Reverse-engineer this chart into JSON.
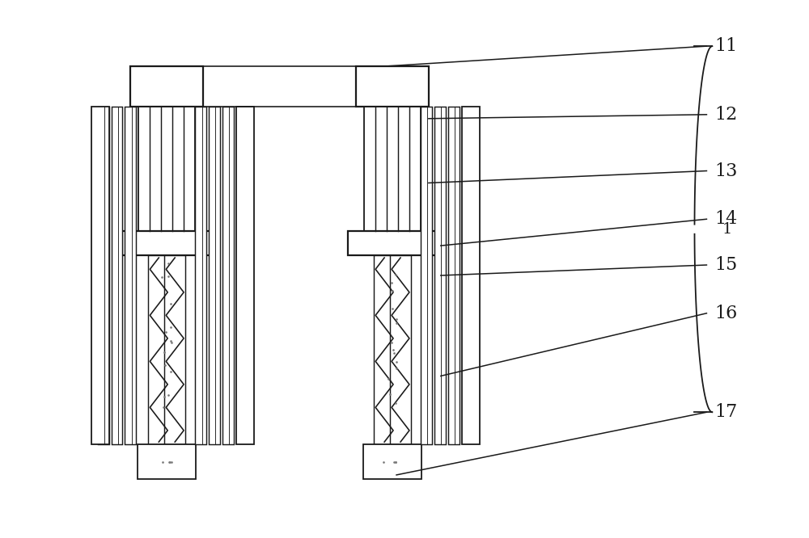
{
  "bg_color": "#ffffff",
  "line_color": "#1a1a1a",
  "lw": 1.3,
  "fig_width": 10.0,
  "fig_height": 6.66,
  "labels": [
    "11",
    "12",
    "13",
    "14",
    "15",
    "16",
    "17"
  ],
  "label_fontsize": 16,
  "bracket_label": "1",
  "bracket_fontsize": 14
}
